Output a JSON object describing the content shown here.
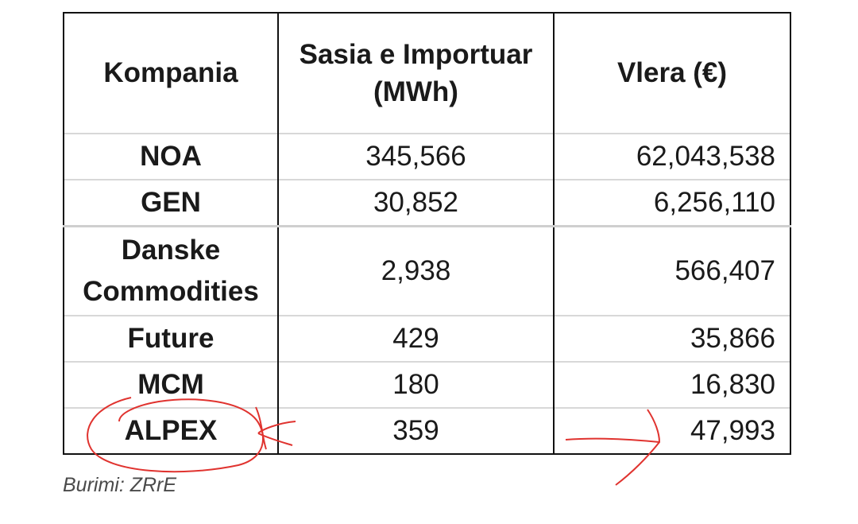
{
  "table": {
    "header": [
      "Kompania",
      "Sasia e Importuar (MWh)",
      "Vlera (€)"
    ],
    "rows": [
      [
        "NOA",
        "345,566",
        "62,043,538"
      ],
      [
        "GEN",
        "30,852",
        "6,256,110"
      ],
      [
        "Danske Commodities",
        "2,938",
        "566,407"
      ],
      [
        "Future",
        "429",
        "35,866"
      ],
      [
        "MCM",
        "180",
        "16,830"
      ],
      [
        "ALPEX",
        "359",
        "47,993"
      ]
    ]
  },
  "caption": "Burimi: ZRrE"
}
